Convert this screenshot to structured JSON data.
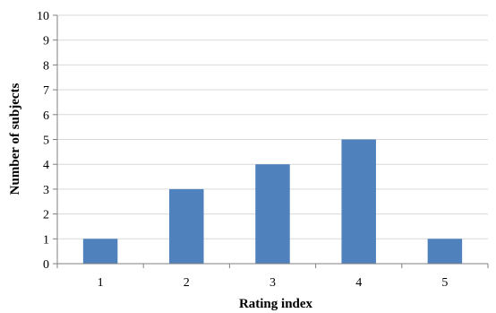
{
  "chart_data": {
    "type": "bar",
    "categories": [
      "1",
      "2",
      "3",
      "4",
      "5"
    ],
    "values": [
      1,
      3,
      4,
      5,
      1
    ],
    "title": "",
    "xlabel": "Rating index",
    "ylabel": "Number of subjects",
    "ylim": [
      0,
      10
    ],
    "yticks": [
      "0",
      "1",
      "2",
      "3",
      "4",
      "5",
      "6",
      "7",
      "8",
      "9",
      "10"
    ],
    "grid": true,
    "bar_color": "#4F81BD",
    "grid_color": "#d9d9d9",
    "axis_color": "#808080"
  }
}
